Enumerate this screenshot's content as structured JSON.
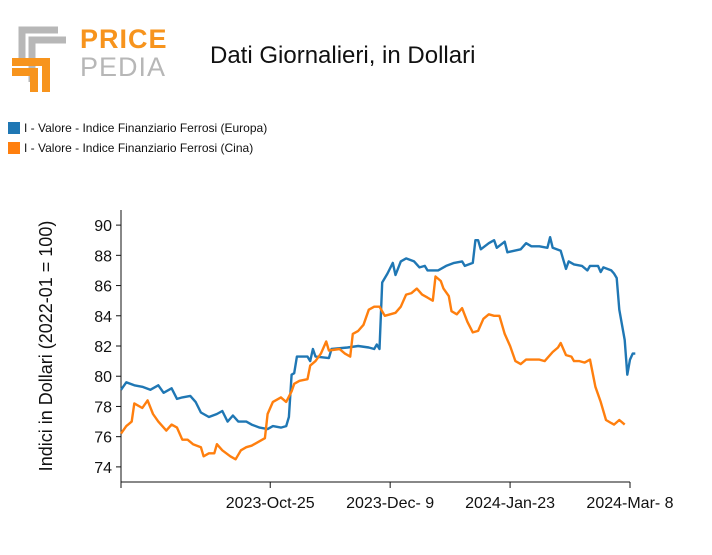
{
  "logo": {
    "word1": "PRICE",
    "word2": "PEDIA"
  },
  "colors": {
    "europa": "#1f77b4",
    "cina": "#ff7f0e",
    "logo_orange": "#f7941d",
    "logo_grey": "#b7b7b7"
  },
  "chart_data": {
    "type": "line",
    "title": "Dati Giornalieri, in Dollari",
    "ylabel": "Indici in Dollari (2022-01 = 100)",
    "ylim": [
      73,
      91
    ],
    "yticks": [
      74,
      76,
      78,
      80,
      82,
      84,
      86,
      88,
      90
    ],
    "xlim": [
      "2023-08-30",
      "2024-03-08"
    ],
    "xticks": [
      {
        "date": "2023-08-30",
        "label": ""
      },
      {
        "date": "2023-10-25",
        "label": "2023-Oct-25"
      },
      {
        "date": "2023-12-09",
        "label": "2023-Dec- 9"
      },
      {
        "date": "2024-01-23",
        "label": "2024-Jan-23"
      },
      {
        "date": "2024-03-08",
        "label": "2024-Mar- 8"
      }
    ],
    "legend_position": "top-left",
    "series": [
      {
        "name": "I - Valore - Indice Finanziario Ferrosi (Europa)",
        "color": "#1f77b4",
        "points": [
          [
            "2023-08-30",
            79.1
          ],
          [
            "2023-09-01",
            79.6
          ],
          [
            "2023-09-04",
            79.4
          ],
          [
            "2023-09-07",
            79.3
          ],
          [
            "2023-09-10",
            79.1
          ],
          [
            "2023-09-13",
            79.4
          ],
          [
            "2023-09-15",
            78.9
          ],
          [
            "2023-09-18",
            79.2
          ],
          [
            "2023-09-20",
            78.5
          ],
          [
            "2023-09-22",
            78.6
          ],
          [
            "2023-09-25",
            78.7
          ],
          [
            "2023-09-27",
            78.3
          ],
          [
            "2023-09-29",
            77.6
          ],
          [
            "2023-10-02",
            77.3
          ],
          [
            "2023-10-05",
            77.5
          ],
          [
            "2023-10-07",
            77.7
          ],
          [
            "2023-10-09",
            77.0
          ],
          [
            "2023-10-11",
            77.4
          ],
          [
            "2023-10-13",
            77.0
          ],
          [
            "2023-10-16",
            77.0
          ],
          [
            "2023-10-18",
            76.8
          ],
          [
            "2023-10-21",
            76.6
          ],
          [
            "2023-10-24",
            76.5
          ],
          [
            "2023-10-26",
            76.7
          ],
          [
            "2023-10-29",
            76.6
          ],
          [
            "2023-10-31",
            76.7
          ],
          [
            "2023-11-01",
            77.3
          ],
          [
            "2023-11-02",
            80.1
          ],
          [
            "2023-11-03",
            80.2
          ],
          [
            "2023-11-04",
            81.3
          ],
          [
            "2023-11-08",
            81.3
          ],
          [
            "2023-11-09",
            81.0
          ],
          [
            "2023-11-10",
            81.8
          ],
          [
            "2023-11-11",
            81.3
          ],
          [
            "2023-11-16",
            81.2
          ],
          [
            "2023-11-17",
            81.8
          ],
          [
            "2023-11-23",
            81.9
          ],
          [
            "2023-11-27",
            82.0
          ],
          [
            "2023-12-01",
            81.9
          ],
          [
            "2023-12-03",
            81.8
          ],
          [
            "2023-12-04",
            82.1
          ],
          [
            "2023-12-05",
            81.8
          ],
          [
            "2023-12-06",
            86.2
          ],
          [
            "2023-12-08",
            86.8
          ],
          [
            "2023-12-10",
            87.5
          ],
          [
            "2023-12-11",
            86.7
          ],
          [
            "2023-12-13",
            87.6
          ],
          [
            "2023-12-15",
            87.8
          ],
          [
            "2023-12-18",
            87.6
          ],
          [
            "2023-12-20",
            87.2
          ],
          [
            "2023-12-22",
            87.3
          ],
          [
            "2023-12-23",
            87.0
          ],
          [
            "2023-12-27",
            87.0
          ],
          [
            "2023-12-30",
            87.3
          ],
          [
            "2024-01-02",
            87.5
          ],
          [
            "2024-01-05",
            87.6
          ],
          [
            "2024-01-06",
            87.3
          ],
          [
            "2024-01-09",
            87.5
          ],
          [
            "2024-01-10",
            89.0
          ],
          [
            "2024-01-11",
            89.0
          ],
          [
            "2024-01-12",
            88.4
          ],
          [
            "2024-01-15",
            88.8
          ],
          [
            "2024-01-17",
            89.0
          ],
          [
            "2024-01-18",
            88.5
          ],
          [
            "2024-01-21",
            88.9
          ],
          [
            "2024-01-22",
            88.2
          ],
          [
            "2024-01-27",
            88.4
          ],
          [
            "2024-01-29",
            88.8
          ],
          [
            "2024-01-31",
            88.6
          ],
          [
            "2024-02-03",
            88.6
          ],
          [
            "2024-02-06",
            88.5
          ],
          [
            "2024-02-07",
            89.2
          ],
          [
            "2024-02-08",
            88.5
          ],
          [
            "2024-02-11",
            88.3
          ],
          [
            "2024-02-13",
            87.1
          ],
          [
            "2024-02-14",
            87.6
          ],
          [
            "2024-02-16",
            87.4
          ],
          [
            "2024-02-19",
            87.3
          ],
          [
            "2024-02-21",
            87.0
          ],
          [
            "2024-02-22",
            87.3
          ],
          [
            "2024-02-25",
            87.3
          ],
          [
            "2024-02-26",
            86.9
          ],
          [
            "2024-02-27",
            87.2
          ],
          [
            "2024-03-01",
            87.0
          ],
          [
            "2024-03-02",
            86.8
          ],
          [
            "2024-03-03",
            86.5
          ],
          [
            "2024-03-04",
            84.4
          ],
          [
            "2024-03-06",
            82.4
          ],
          [
            "2024-03-07",
            80.1
          ],
          [
            "2024-03-08",
            81.1
          ],
          [
            "2024-03-09",
            81.5
          ],
          [
            "2024-03-10",
            81.5
          ]
        ]
      },
      {
        "name": "I - Valore - Indice Finanziario Ferrosi (Cina)",
        "color": "#ff7f0e",
        "points": [
          [
            "2023-08-30",
            76.2
          ],
          [
            "2023-09-01",
            76.7
          ],
          [
            "2023-09-03",
            77.0
          ],
          [
            "2023-09-04",
            78.2
          ],
          [
            "2023-09-07",
            77.9
          ],
          [
            "2023-09-09",
            78.4
          ],
          [
            "2023-09-11",
            77.5
          ],
          [
            "2023-09-13",
            77.0
          ],
          [
            "2023-09-16",
            76.4
          ],
          [
            "2023-09-18",
            76.8
          ],
          [
            "2023-09-20",
            76.6
          ],
          [
            "2023-09-22",
            75.8
          ],
          [
            "2023-09-24",
            75.8
          ],
          [
            "2023-09-26",
            75.5
          ],
          [
            "2023-09-29",
            75.3
          ],
          [
            "2023-09-30",
            74.7
          ],
          [
            "2023-10-02",
            74.9
          ],
          [
            "2023-10-04",
            74.9
          ],
          [
            "2023-10-05",
            75.5
          ],
          [
            "2023-10-07",
            75.1
          ],
          [
            "2023-10-10",
            74.7
          ],
          [
            "2023-10-12",
            74.5
          ],
          [
            "2023-10-14",
            75.1
          ],
          [
            "2023-10-16",
            75.3
          ],
          [
            "2023-10-18",
            75.4
          ],
          [
            "2023-10-21",
            75.7
          ],
          [
            "2023-10-23",
            75.9
          ],
          [
            "2023-10-24",
            77.5
          ],
          [
            "2023-10-26",
            78.3
          ],
          [
            "2023-10-29",
            78.6
          ],
          [
            "2023-10-31",
            78.3
          ],
          [
            "2023-11-02",
            79.0
          ],
          [
            "2023-11-03",
            79.5
          ],
          [
            "2023-11-05",
            79.7
          ],
          [
            "2023-11-08",
            79.8
          ],
          [
            "2023-11-09",
            80.7
          ],
          [
            "2023-11-11",
            81.0
          ],
          [
            "2023-11-13",
            81.5
          ],
          [
            "2023-11-15",
            82.3
          ],
          [
            "2023-11-16",
            81.7
          ],
          [
            "2023-11-20",
            81.8
          ],
          [
            "2023-11-22",
            81.5
          ],
          [
            "2023-11-24",
            81.3
          ],
          [
            "2023-11-25",
            82.8
          ],
          [
            "2023-11-27",
            83.0
          ],
          [
            "2023-11-29",
            83.4
          ],
          [
            "2023-12-01",
            84.4
          ],
          [
            "2023-12-03",
            84.6
          ],
          [
            "2023-12-05",
            84.6
          ],
          [
            "2023-12-07",
            84.0
          ],
          [
            "2023-12-09",
            84.1
          ],
          [
            "2023-12-11",
            84.2
          ],
          [
            "2023-12-13",
            84.6
          ],
          [
            "2023-12-15",
            85.4
          ],
          [
            "2023-12-17",
            85.5
          ],
          [
            "2023-12-19",
            85.8
          ],
          [
            "2023-12-21",
            85.4
          ],
          [
            "2023-12-23",
            85.2
          ],
          [
            "2023-12-25",
            85.0
          ],
          [
            "2023-12-26",
            86.6
          ],
          [
            "2023-12-28",
            86.3
          ],
          [
            "2023-12-29",
            85.8
          ],
          [
            "2023-12-31",
            85.3
          ],
          [
            "2024-01-01",
            84.3
          ],
          [
            "2024-01-03",
            84.1
          ],
          [
            "2024-01-05",
            84.5
          ],
          [
            "2024-01-07",
            83.6
          ],
          [
            "2024-01-09",
            82.9
          ],
          [
            "2024-01-11",
            83.0
          ],
          [
            "2024-01-13",
            83.8
          ],
          [
            "2024-01-15",
            84.1
          ],
          [
            "2024-01-17",
            84.0
          ],
          [
            "2024-01-19",
            84.0
          ],
          [
            "2024-01-21",
            82.8
          ],
          [
            "2024-01-23",
            82.0
          ],
          [
            "2024-01-25",
            81.0
          ],
          [
            "2024-01-27",
            80.8
          ],
          [
            "2024-01-29",
            81.1
          ],
          [
            "2024-02-01",
            81.1
          ],
          [
            "2024-02-03",
            81.1
          ],
          [
            "2024-02-05",
            81.0
          ],
          [
            "2024-02-08",
            81.6
          ],
          [
            "2024-02-10",
            81.9
          ],
          [
            "2024-02-11",
            82.2
          ],
          [
            "2024-02-13",
            81.4
          ],
          [
            "2024-02-15",
            81.3
          ],
          [
            "2024-02-16",
            81.0
          ],
          [
            "2024-02-18",
            81.0
          ],
          [
            "2024-02-20",
            80.9
          ],
          [
            "2024-02-22",
            81.1
          ],
          [
            "2024-02-24",
            79.3
          ],
          [
            "2024-02-26",
            78.3
          ],
          [
            "2024-02-28",
            77.1
          ],
          [
            "2024-03-01",
            76.9
          ],
          [
            "2024-03-02",
            76.8
          ],
          [
            "2024-03-04",
            77.1
          ],
          [
            "2024-03-06",
            76.8
          ]
        ]
      }
    ]
  }
}
